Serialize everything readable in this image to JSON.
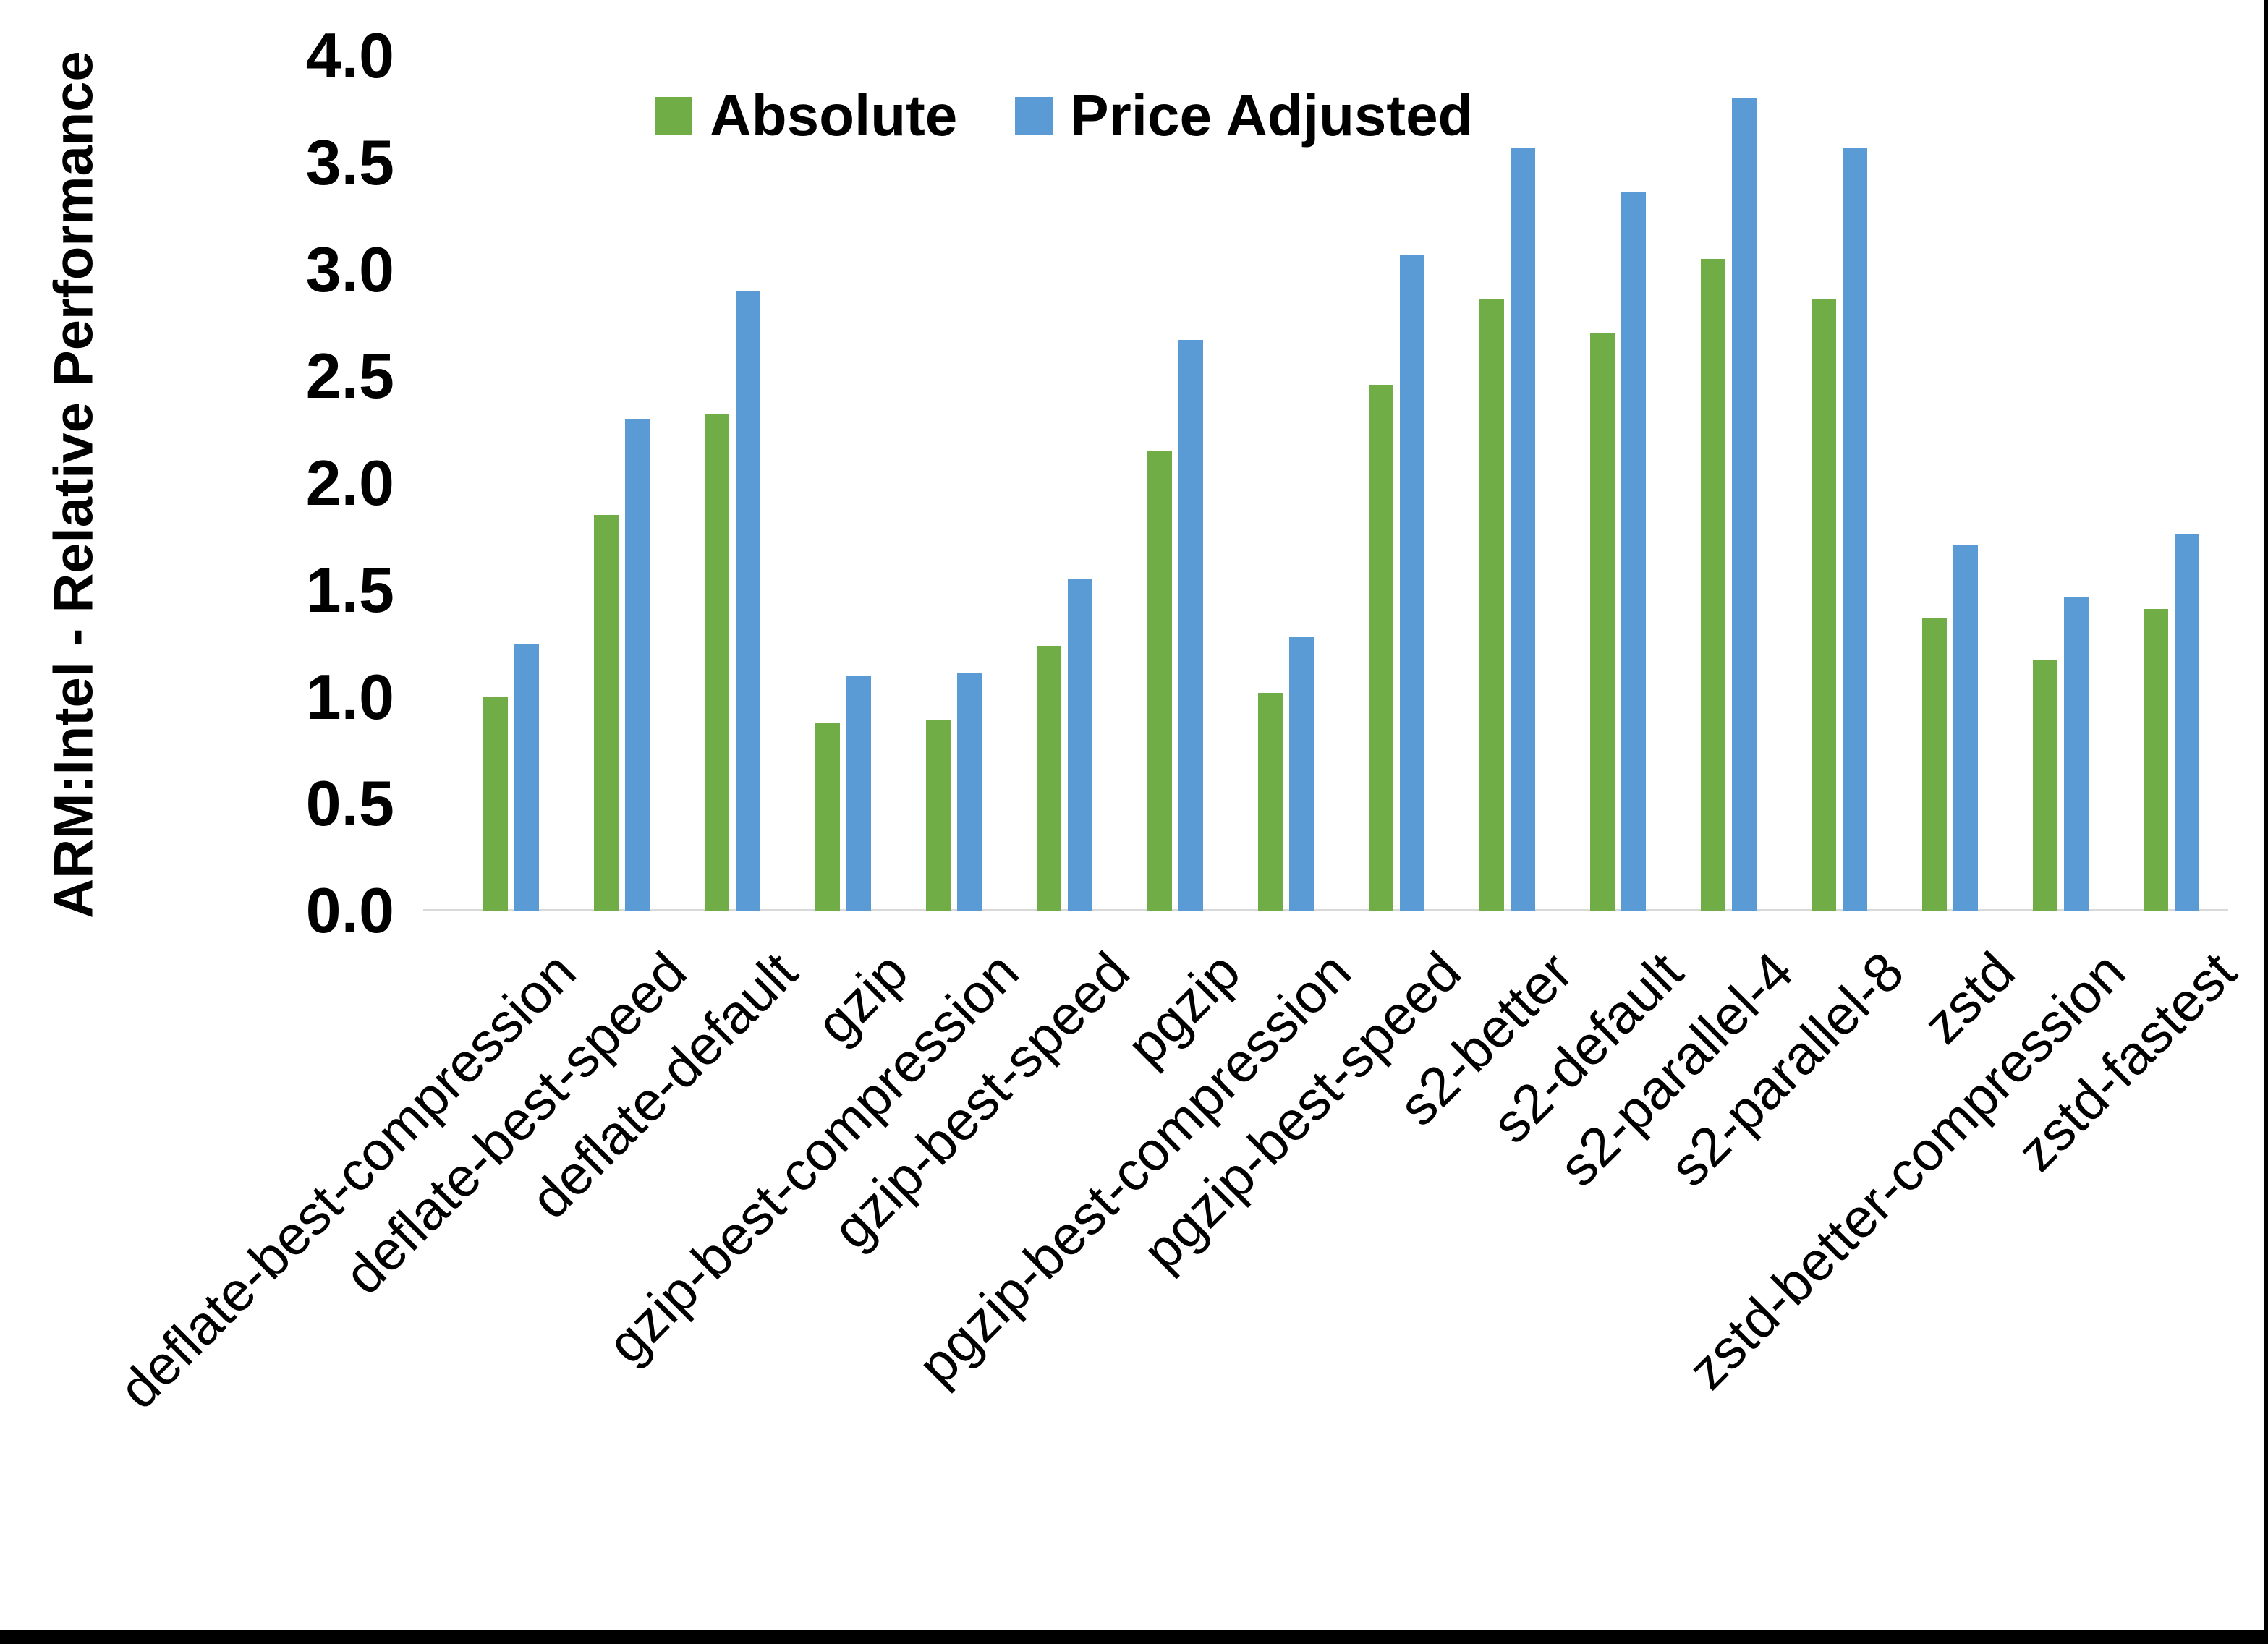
{
  "figure": {
    "y_axis_title": "ARM:Intel - Relative Performance"
  },
  "legend": {
    "items": [
      {
        "label": "Absolute",
        "color": "#70AD47"
      },
      {
        "label": "Price Adjusted",
        "color": "#5B9BD5"
      }
    ]
  },
  "chart_data": {
    "type": "bar",
    "title": "",
    "xlabel": "",
    "ylabel": "ARM:Intel - Relative Performance",
    "categories": [
      "deflate-best-compression",
      "deflate-best-speed",
      "deflate-default",
      "gzip",
      "gzip-best-compression",
      "gzip-best-speed",
      "pgzip",
      "pgzip-best-compression",
      "pgzip-best-speed",
      "s2-better",
      "s2-default",
      "s2-parallel-4",
      "s2-parallel-8",
      "zstd",
      "zstd-better-compression",
      "zstd-fastest"
    ],
    "series": [
      {
        "name": "Absolute",
        "color": "#70AD47",
        "values": [
          1.0,
          1.85,
          2.32,
          0.88,
          0.89,
          1.24,
          2.15,
          1.02,
          2.46,
          2.86,
          2.7,
          3.05,
          2.86,
          1.37,
          1.17,
          1.41
        ]
      },
      {
        "name": "Price Adjusted",
        "color": "#5B9BD5",
        "values": [
          1.25,
          2.3,
          2.9,
          1.1,
          1.11,
          1.55,
          2.67,
          1.28,
          3.07,
          3.57,
          3.36,
          3.8,
          3.57,
          1.71,
          1.47,
          1.76
        ]
      }
    ],
    "ylim": [
      0.0,
      4.0
    ],
    "y_ticks": [
      "0.0",
      "0.5",
      "1.0",
      "1.5",
      "2.0",
      "2.5",
      "3.0",
      "3.5",
      "4.0"
    ],
    "x_tick_rotation_deg": 45,
    "grid": false,
    "legend_position": "top-center",
    "background": "#ffffff"
  },
  "colors": {
    "axis_line": "#d9d9d9",
    "text": "#000000",
    "background": "#ffffff",
    "window_border": "#000000"
  }
}
